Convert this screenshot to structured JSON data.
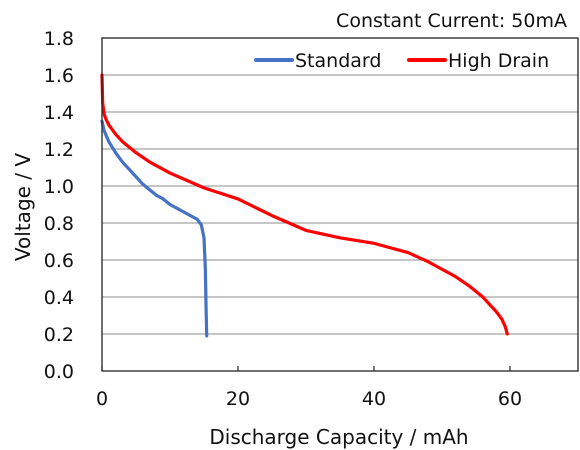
{
  "chart_data": {
    "type": "line",
    "title": "",
    "annotation": "Constant Current: 50mA",
    "xlabel": "Discharge Capacity / mAh",
    "ylabel": "Voltage / V",
    "xlim": [
      0,
      70
    ],
    "ylim": [
      0,
      1.8
    ],
    "xticks": [
      0,
      20,
      40,
      60
    ],
    "xtick_labels": [
      "0",
      "20",
      "40",
      "60"
    ],
    "yticks": [
      0,
      0.2,
      0.4,
      0.6,
      0.8,
      1.0,
      1.2,
      1.4,
      1.6,
      1.8
    ],
    "ytick_labels": [
      "0.0",
      "0.2",
      "0.4",
      "0.6",
      "0.8",
      "1.0",
      "1.2",
      "1.4",
      "1.6",
      "1.8"
    ],
    "grid": "horizontal",
    "legend_position": "top-right",
    "series": [
      {
        "name": "Standard",
        "color": "#4472C4",
        "x": [
          0,
          0.3,
          1,
          2,
          3,
          4,
          5,
          6,
          7,
          8,
          9,
          10,
          11,
          12,
          13,
          14,
          14.6,
          15,
          15.2,
          15.3,
          15.4
        ],
        "y": [
          1.35,
          1.3,
          1.24,
          1.18,
          1.13,
          1.09,
          1.05,
          1.01,
          0.98,
          0.95,
          0.93,
          0.9,
          0.88,
          0.86,
          0.84,
          0.82,
          0.79,
          0.72,
          0.55,
          0.35,
          0.19
        ]
      },
      {
        "name": "High Drain",
        "color": "#FF0000",
        "x": [
          0,
          0.1,
          0.3,
          0.6,
          1,
          2,
          3,
          5,
          7,
          10,
          15,
          20,
          25,
          30,
          35,
          40,
          45,
          48,
          50,
          52,
          54,
          56,
          57,
          58,
          58.8,
          59.3,
          59.6
        ],
        "y": [
          1.6,
          1.45,
          1.39,
          1.36,
          1.33,
          1.28,
          1.24,
          1.18,
          1.13,
          1.07,
          0.99,
          0.93,
          0.84,
          0.76,
          0.72,
          0.69,
          0.64,
          0.59,
          0.55,
          0.51,
          0.46,
          0.4,
          0.36,
          0.32,
          0.28,
          0.24,
          0.2
        ]
      }
    ]
  }
}
